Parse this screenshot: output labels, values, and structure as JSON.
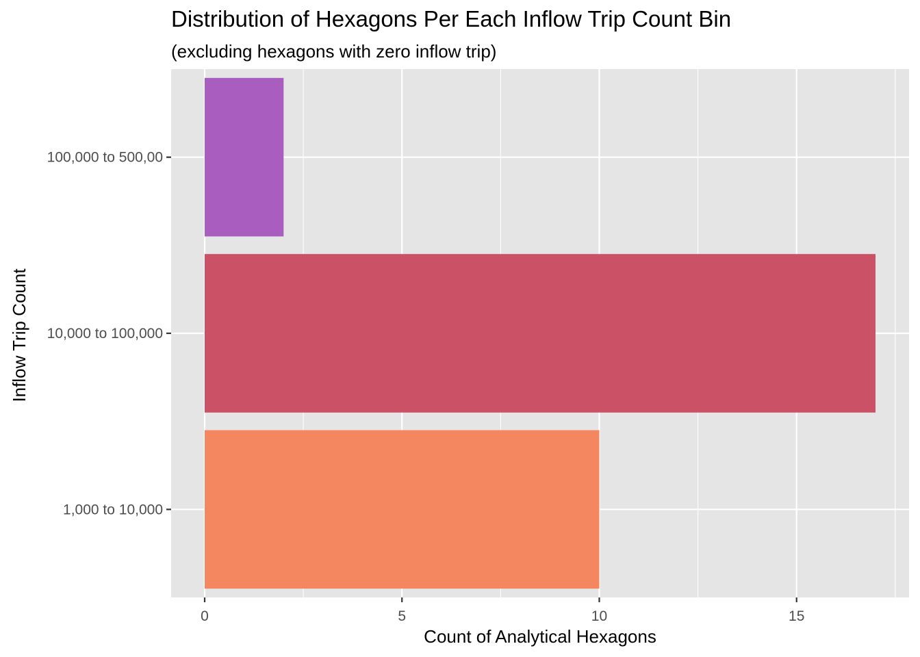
{
  "chart_data": {
    "type": "bar",
    "orientation": "horizontal",
    "title": "Distribution of Hexagons Per Each Inflow Trip Count Bin",
    "subtitle": "(excluding hexagons with zero inflow trip)",
    "xlabel": "Count of Analytical Hexagons",
    "ylabel": "Inflow Trip Count",
    "categories": [
      "1,000 to 10,000",
      "10,000 to 100,000",
      "100,000 to 500,00"
    ],
    "values": [
      10,
      17,
      2
    ],
    "colors": [
      "#f4875f",
      "#cb5166",
      "#a85dbf"
    ],
    "xlim": [
      -0.85,
      17.85
    ],
    "xticks": [
      0,
      5,
      10,
      15
    ],
    "xtick_labels": [
      "0",
      "5",
      "10",
      "15"
    ],
    "grid": true,
    "legend": "none",
    "panel_background": "#e5e5e5"
  }
}
